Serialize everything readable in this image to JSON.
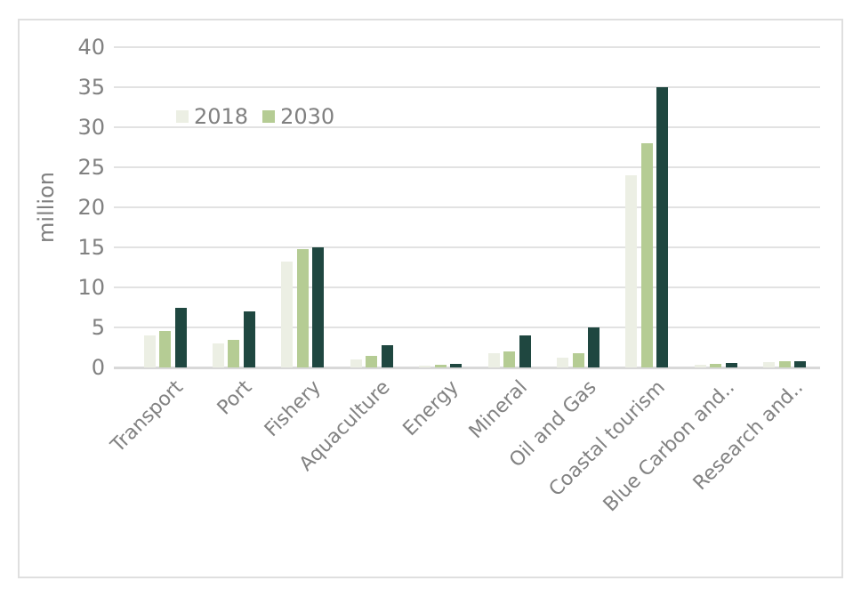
{
  "chart_data": {
    "type": "bar",
    "title": "",
    "y_axis_title": "million",
    "categories": [
      "Transport",
      "Port",
      "Fishery",
      "Aquaculture",
      "Energy",
      "Mineral",
      "Oil and Gas",
      "Coastal tourism",
      "Blue Carbon and..",
      "Research and.."
    ],
    "series": [
      {
        "name": "2018",
        "color": "#ecefe4",
        "in_legend": true,
        "values": [
          4,
          3,
          13.2,
          1,
          0.2,
          1.8,
          1.2,
          24,
          0.3,
          0.7
        ]
      },
      {
        "name": "2030",
        "color": "#b5cc94",
        "in_legend": true,
        "values": [
          4.6,
          3.5,
          14.8,
          1.5,
          0.3,
          2,
          1.8,
          28,
          0.4,
          0.8
        ]
      },
      {
        "name": "",
        "color": "#1f4740",
        "in_legend": false,
        "values": [
          7.5,
          7,
          15,
          2.8,
          0.5,
          4,
          5,
          35,
          0.6,
          0.8
        ]
      }
    ],
    "ylim": [
      0,
      40
    ],
    "y_tick_step": 5,
    "y_ticks": [
      0,
      5,
      10,
      15,
      20,
      25,
      30,
      35,
      40
    ],
    "grid": "horizontal",
    "legend_position": "inside-top-left",
    "x_tick_rotation_deg": 45
  },
  "colors": {
    "gridline": "#e2e2e2",
    "zero_line": "#d8d8d8",
    "frame_border": "#dfdfdf",
    "axis_text": "#808080",
    "background": "#ffffff"
  }
}
